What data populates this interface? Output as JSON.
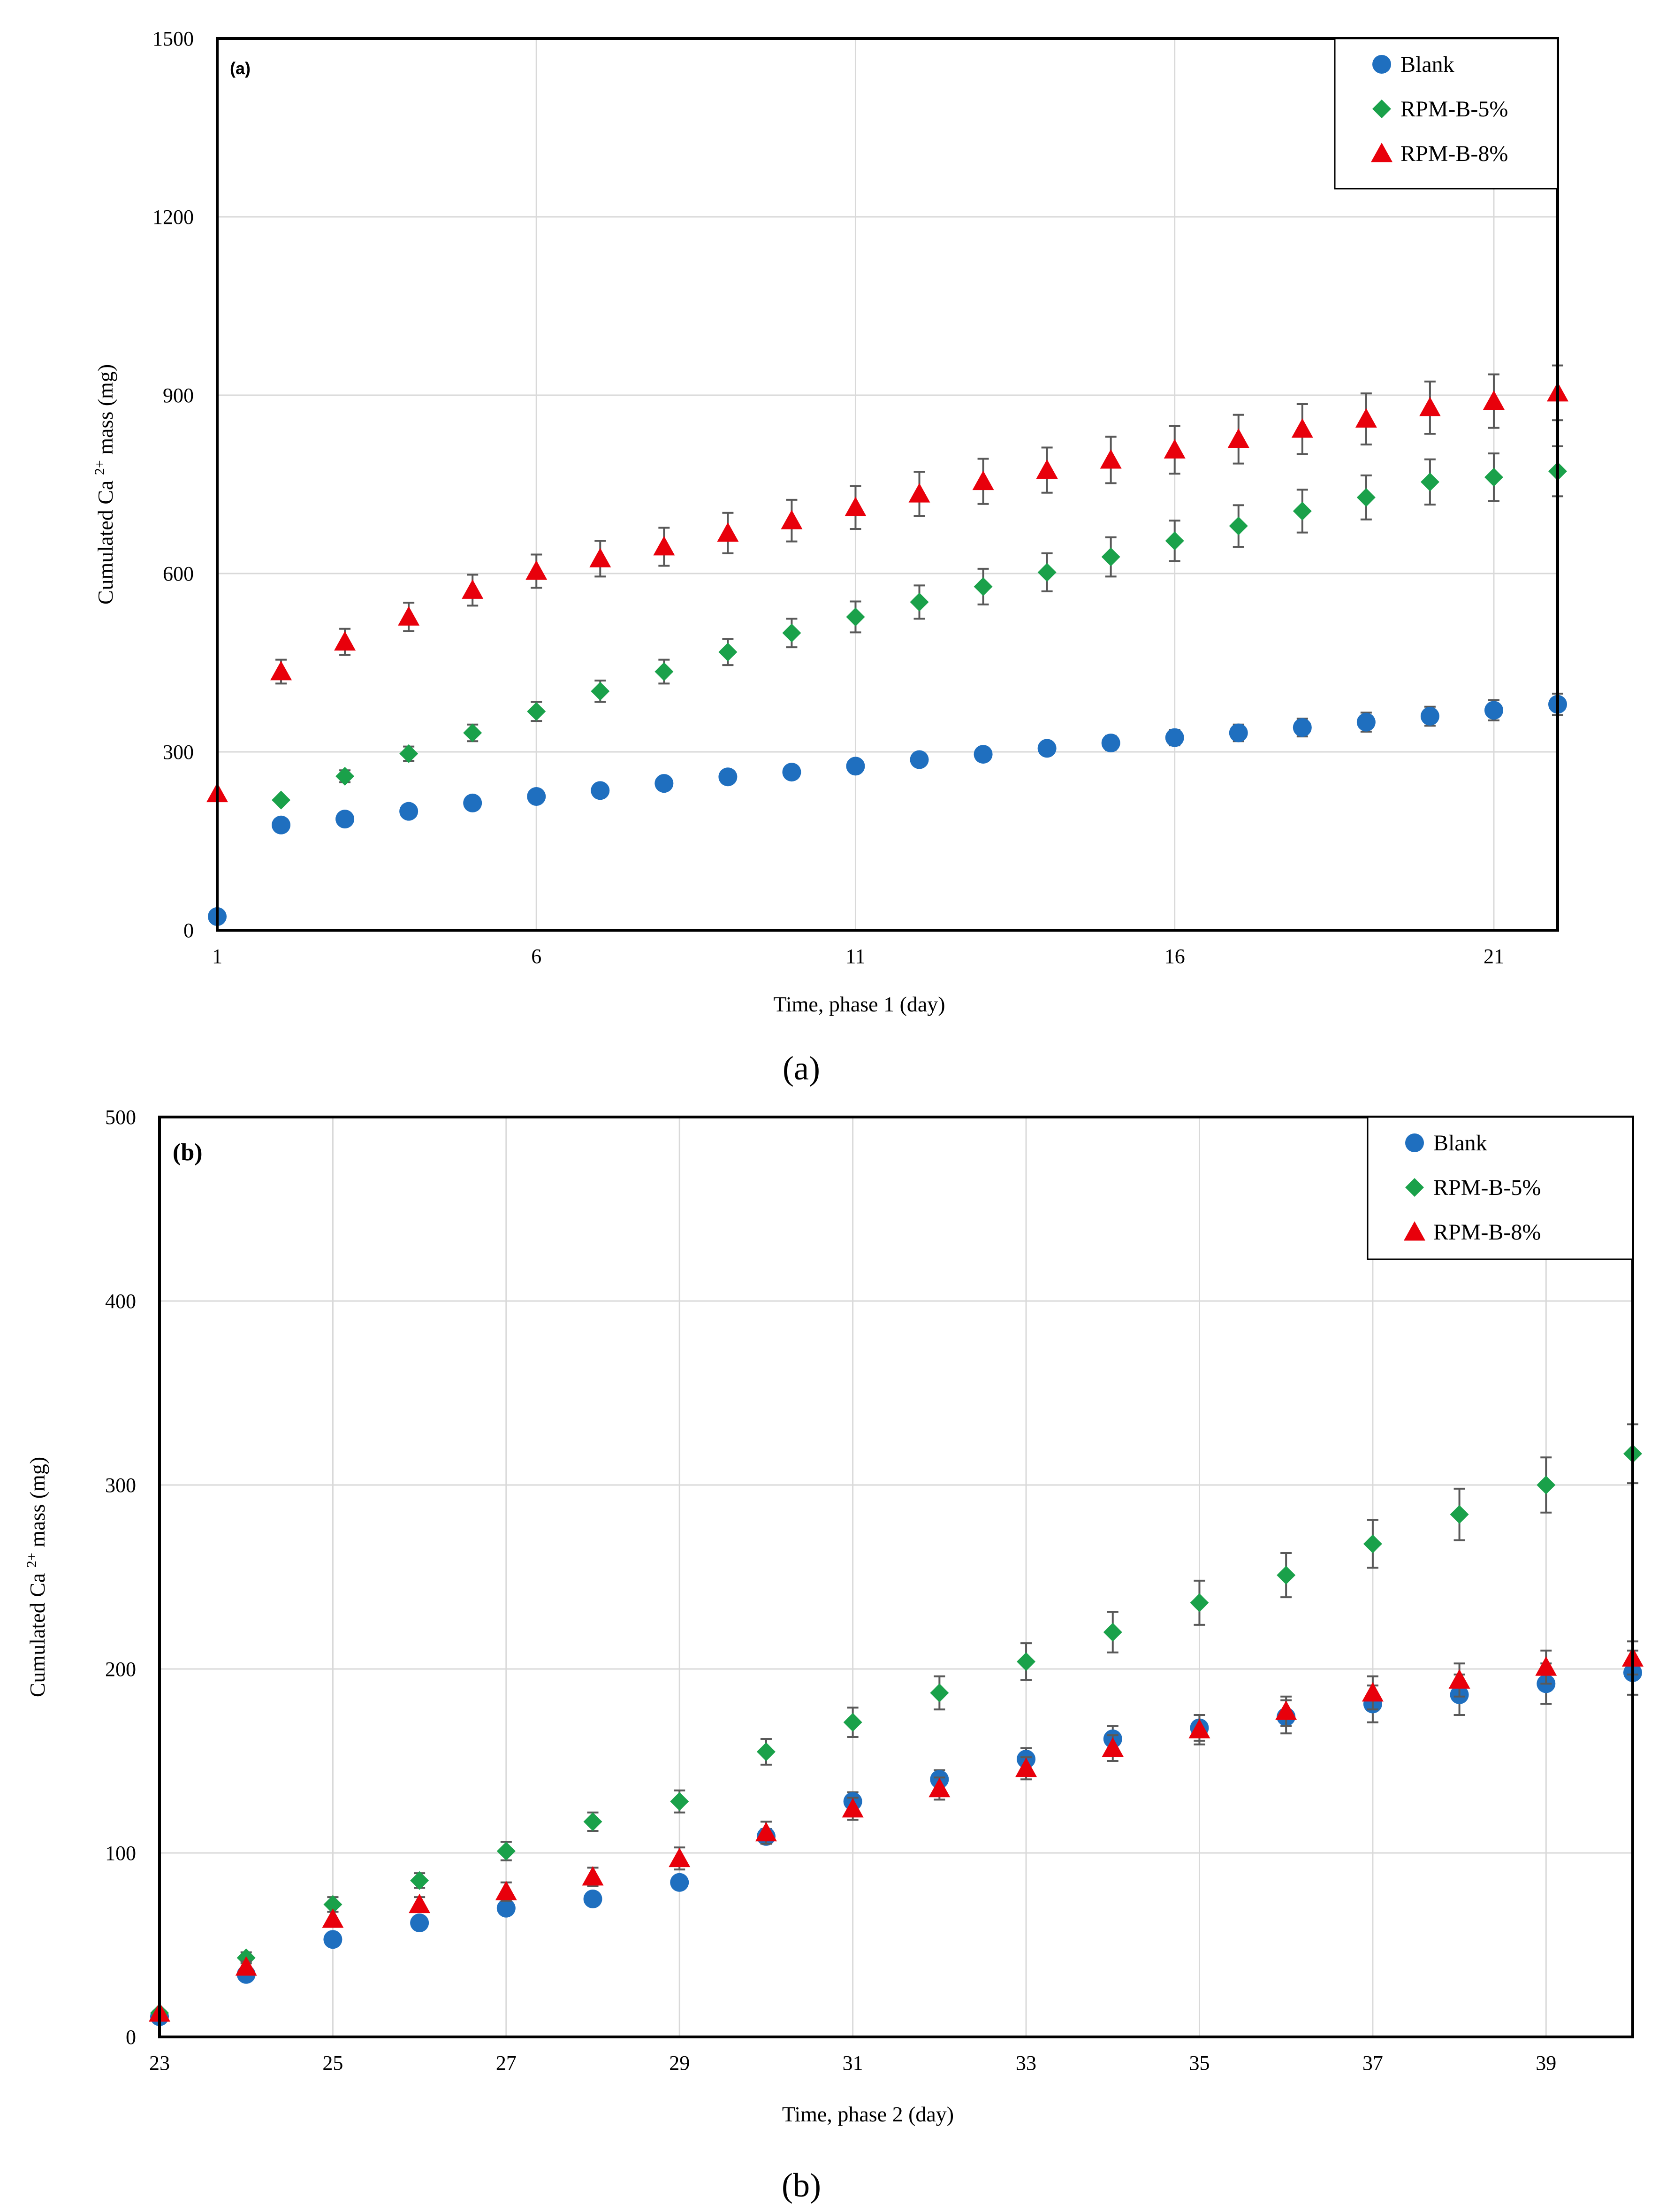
{
  "chart_data": [
    {
      "type": "scatter",
      "panel_label": "(a)",
      "caption": "(a)",
      "xlabel": "Time,  phase 1 (day)",
      "ylabel": "Cumulated  Ca 2+ mass (mg)",
      "xlim": [
        1,
        22
      ],
      "ylim": [
        0,
        1500
      ],
      "xticks": [
        1,
        6,
        11,
        16,
        21
      ],
      "yticks": [
        0,
        300,
        600,
        900,
        1200,
        1500
      ],
      "grid": true,
      "legend_position": "top-right",
      "series": [
        {
          "name": "Blank",
          "marker": "circle",
          "color": "#1f6fbf",
          "x": [
            1,
            2,
            3,
            4,
            5,
            6,
            7,
            8,
            9,
            10,
            11,
            12,
            13,
            14,
            15,
            16,
            17,
            18,
            19,
            20,
            21,
            22
          ],
          "y": [
            23,
            177,
            187,
            200,
            214,
            225,
            235,
            247,
            258,
            266,
            276,
            287,
            296,
            306,
            315,
            324,
            332,
            341,
            350,
            360,
            370,
            380
          ],
          "err": [
            0,
            0,
            0,
            0,
            0,
            0,
            0,
            0,
            0,
            0,
            0,
            0,
            0,
            10,
            12,
            13,
            14,
            15,
            16,
            16,
            17,
            18
          ]
        },
        {
          "name": "RPM-B-5%",
          "marker": "diamond",
          "color": "#1aa14a",
          "x": [
            2,
            3,
            4,
            5,
            6,
            7,
            8,
            9,
            10,
            11,
            12,
            13,
            14,
            15,
            16,
            17,
            18,
            19,
            20,
            21,
            22
          ],
          "y": [
            219,
            259,
            297,
            332,
            368,
            402,
            435,
            468,
            500,
            527,
            552,
            578,
            602,
            628,
            655,
            680,
            705,
            728,
            754,
            762,
            772
          ],
          "err": [
            0,
            10,
            12,
            14,
            16,
            18,
            20,
            22,
            24,
            26,
            28,
            30,
            32,
            33,
            34,
            35,
            36,
            37,
            38,
            40,
            42
          ]
        },
        {
          "name": "RPM-B-8%",
          "marker": "triangle",
          "color": "#e8000b",
          "x": [
            1,
            2,
            3,
            4,
            5,
            6,
            7,
            8,
            9,
            10,
            11,
            12,
            13,
            14,
            15,
            16,
            17,
            18,
            19,
            20,
            21,
            22
          ],
          "y": [
            230,
            435,
            485,
            527,
            572,
            604,
            625,
            645,
            668,
            689,
            711,
            734,
            755,
            774,
            791,
            808,
            826,
            843,
            860,
            879,
            890,
            904
          ],
          "err": [
            0,
            20,
            22,
            24,
            26,
            28,
            30,
            32,
            34,
            35,
            36,
            37,
            38,
            38,
            39,
            40,
            41,
            42,
            43,
            44,
            45,
            46
          ]
        }
      ]
    },
    {
      "type": "scatter",
      "panel_label": "(b)",
      "caption": "(b)",
      "xlabel": "Time,  phase 2 (day)",
      "ylabel": "Cumulated  Ca 2+ mass (mg)",
      "xlim": [
        23,
        40
      ],
      "ylim": [
        0,
        500
      ],
      "xticks": [
        23,
        25,
        27,
        29,
        31,
        33,
        35,
        37,
        39
      ],
      "yticks": [
        0,
        100,
        200,
        300,
        400,
        500
      ],
      "grid": true,
      "legend_position": "top-right",
      "series": [
        {
          "name": "Blank",
          "marker": "circle",
          "color": "#1f6fbf",
          "x": [
            23,
            24,
            25,
            26,
            27,
            28,
            29,
            30,
            31,
            32,
            33,
            34,
            35,
            36,
            37,
            38,
            39,
            40
          ],
          "y": [
            11,
            34,
            53,
            62,
            70,
            75,
            84,
            109,
            128,
            140,
            151,
            162,
            168,
            174,
            181,
            186,
            192,
            198
          ],
          "err": [
            0,
            0,
            0,
            0,
            0,
            0,
            0,
            4,
            5,
            5,
            6,
            7,
            7,
            9,
            10,
            11,
            11,
            12
          ]
        },
        {
          "name": "RPM-B-5%",
          "marker": "diamond",
          "color": "#1aa14a",
          "x": [
            23,
            24,
            25,
            26,
            27,
            28,
            29,
            30,
            31,
            32,
            33,
            34,
            35,
            36,
            37,
            38,
            39,
            40
          ],
          "y": [
            13,
            43,
            72,
            85,
            101,
            117,
            128,
            155,
            171,
            187,
            204,
            220,
            236,
            251,
            268,
            284,
            300,
            317
          ],
          "err": [
            0,
            3,
            4,
            4,
            5,
            5,
            6,
            7,
            8,
            9,
            10,
            11,
            12,
            12,
            13,
            14,
            15,
            16
          ]
        },
        {
          "name": "RPM-B-8%",
          "marker": "triangle",
          "color": "#e8000b",
          "x": [
            23,
            24,
            25,
            26,
            27,
            28,
            29,
            30,
            31,
            32,
            33,
            34,
            35,
            36,
            37,
            38,
            39,
            40
          ],
          "y": [
            13,
            38,
            64,
            72,
            79,
            87,
            97,
            111,
            124,
            135,
            146,
            157,
            167,
            177,
            187,
            194,
            201,
            206
          ],
          "err": [
            0,
            3,
            4,
            4,
            5,
            5,
            6,
            6,
            6,
            6,
            6,
            7,
            8,
            8,
            9,
            9,
            9,
            9
          ]
        }
      ]
    }
  ]
}
